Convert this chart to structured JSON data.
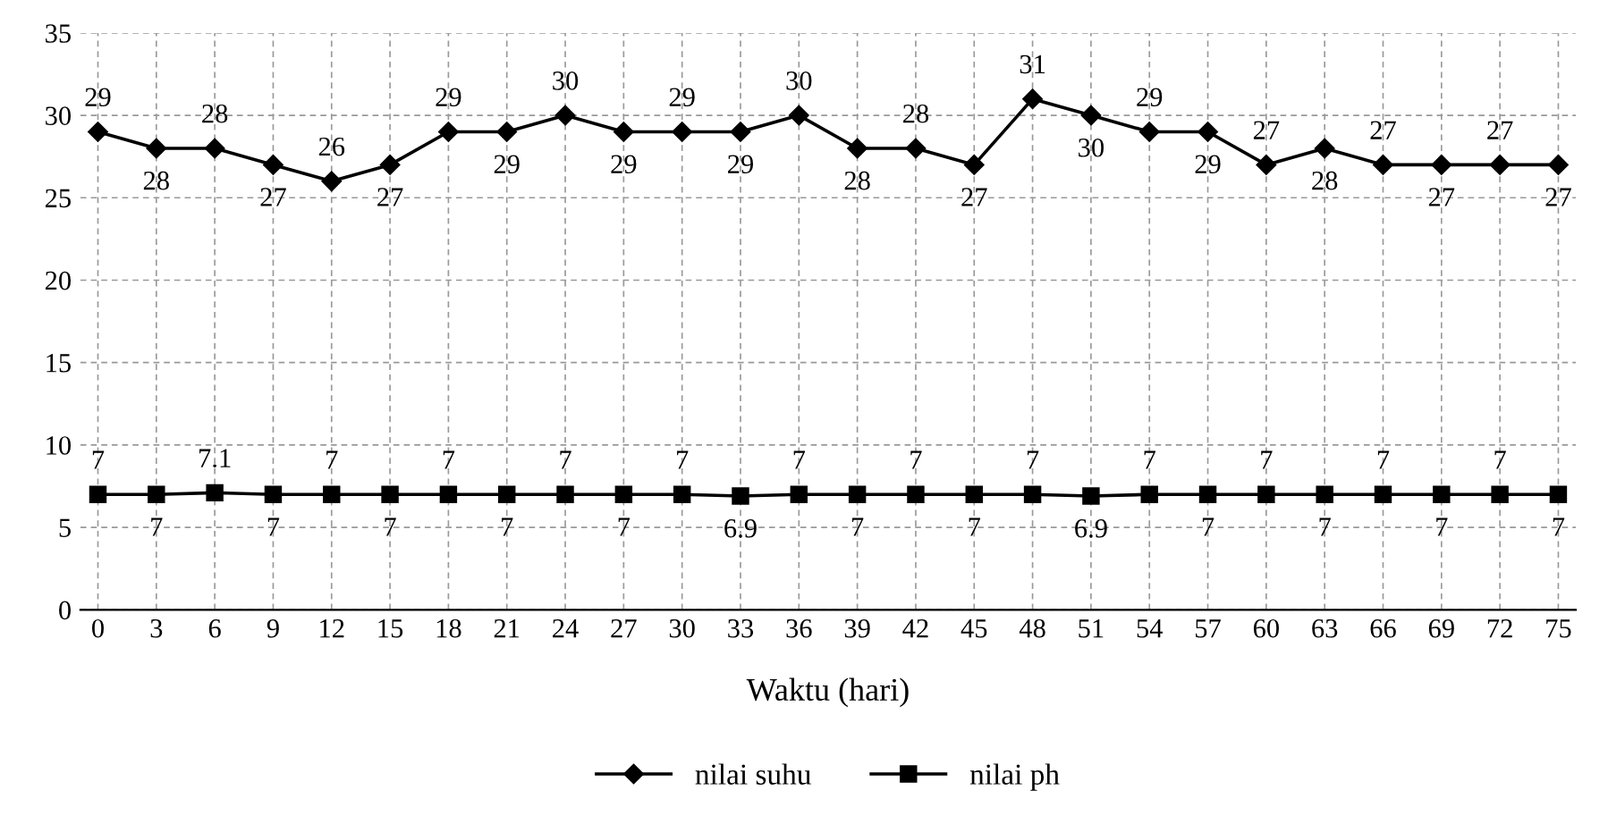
{
  "chart_data": {
    "type": "line",
    "xlabel": "Waktu (hari)",
    "categories": [
      "0",
      "3",
      "6",
      "9",
      "12",
      "15",
      "18",
      "21",
      "24",
      "27",
      "30",
      "33",
      "36",
      "39",
      "42",
      "45",
      "48",
      "51",
      "54",
      "57",
      "60",
      "63",
      "66",
      "69",
      "72",
      "75"
    ],
    "series": [
      {
        "name": "nilai suhu",
        "color": "#000000",
        "marker": "diamond",
        "values": [
          29,
          28,
          28,
          27,
          26,
          27,
          29,
          29,
          30,
          29,
          29,
          29,
          30,
          28,
          28,
          27,
          31,
          30,
          29,
          29,
          27,
          28,
          27,
          27,
          27,
          27
        ]
      },
      {
        "name": "nilai ph",
        "color": "#000000",
        "marker": "square",
        "values": [
          7,
          7,
          7.1,
          7,
          7,
          7,
          7,
          7,
          7,
          7,
          7,
          6.9,
          7,
          7,
          7,
          7,
          7,
          6.9,
          7,
          7,
          7,
          7,
          7,
          7,
          7,
          7
        ]
      }
    ],
    "ylim": [
      0,
      35
    ],
    "yticks": [
      0,
      5,
      10,
      15,
      20,
      25,
      30,
      35
    ],
    "grid": true,
    "legend": "bottom",
    "data_labels": true,
    "line_style": "solid"
  }
}
